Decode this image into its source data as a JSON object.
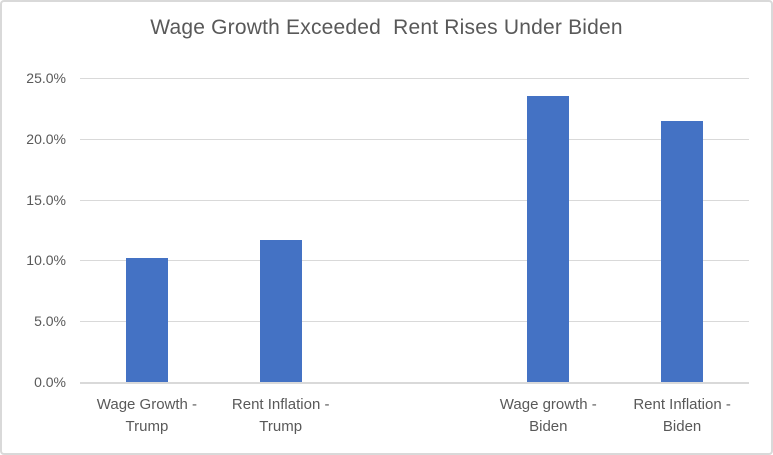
{
  "chart_data": {
    "type": "bar",
    "title": "Wage Growth Exceeded  Rent Rises Under Biden",
    "categories": [
      "Wage Growth - Trump",
      "Rent Inflation - Trump",
      "Wage growth - Biden",
      "Rent Inflation - Biden"
    ],
    "values": [
      10.2,
      11.7,
      23.5,
      21.5
    ],
    "category_lines": [
      [
        "Wage Growth -",
        "Trump"
      ],
      [
        "Rent Inflation -",
        "Trump"
      ],
      [
        "Wage growth -",
        "Biden"
      ],
      [
        "Rent Inflation -",
        "Biden"
      ]
    ],
    "xlabel": "",
    "ylabel": "",
    "ylim": [
      0,
      25
    ],
    "ytick_step": 5,
    "ytick_labels": [
      "0.0%",
      "5.0%",
      "10.0%",
      "15.0%",
      "20.0%",
      "25.0%"
    ],
    "grid": true,
    "legend": false,
    "slot_count": 5,
    "slot_of_bar": [
      0,
      1,
      3,
      4
    ],
    "colors": {
      "bar": "#4472C4",
      "gridline": "#d9d9d9",
      "axis_line": "#d9d9d9",
      "title_text": "#595959",
      "tick_text": "#595959",
      "frame_border": "#d9d9d9",
      "background": "#ffffff"
    }
  }
}
